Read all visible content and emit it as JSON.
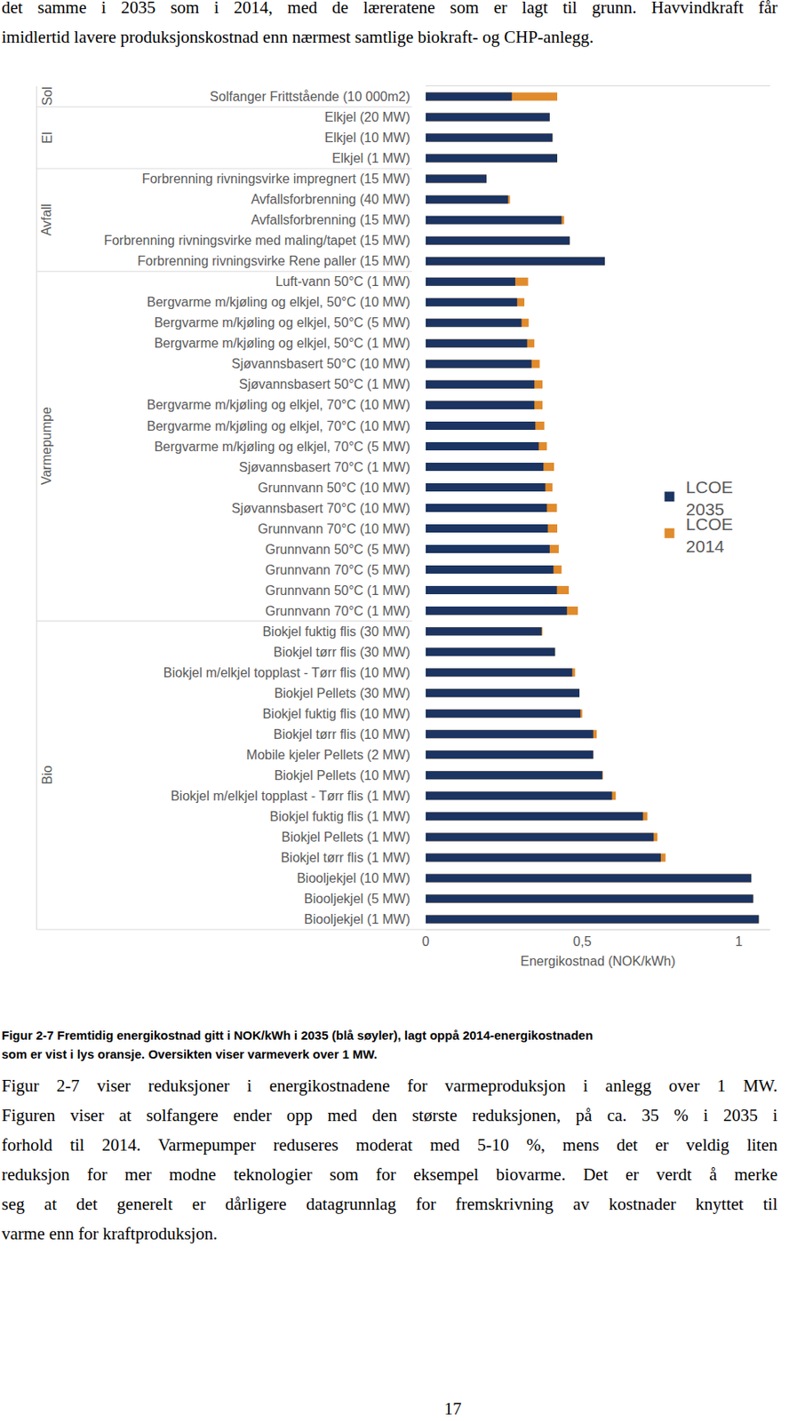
{
  "page": {
    "text_top": [
      "det samme i 2035 som i 2014, med de læreratene som er lagt til grunn. Havvindkraft får",
      "imidlertid lavere produksjonskostnad enn nærmest samtlige biokraft- og CHP-anlegg."
    ],
    "caption": [
      "Figur 2-7 Fremtidig energikostnad gitt i NOK/kWh i 2035 (blå søyler), lagt oppå 2014-energikostnaden",
      "som er vist i lys oransje. Oversikten viser varmeverk over 1 MW."
    ],
    "body": [
      "Figur 2-7 viser reduksjoner i energikostnadene for varmeproduksjon i anlegg over 1 MW.",
      "Figuren viser at solfangere ender opp med den største reduksjonen, på ca. 35 % i 2035 i",
      "forhold til 2014.  Varmepumper reduseres moderat med 5-10 %, mens det er veldig liten",
      "reduksjon for mer modne teknologier som for eksempel biovarme.  Det er verdt å merke",
      "seg at det generelt er dårligere datagrunnlag for fremskrivning av kostnader knyttet til",
      "varme enn for kraftproduksjon."
    ],
    "page_number": "17"
  },
  "chart_data": {
    "type": "bar",
    "orientation": "horizontal",
    "stacked": false,
    "x_label": "Energikostnad (NOK/kWh)",
    "xlim": [
      0,
      1.1
    ],
    "xticks": [
      0,
      {
        "value": 0.5,
        "label": "0,5"
      },
      1
    ],
    "grid": false,
    "legend": "right",
    "categories": [
      "Solfanger Frittstående (10 000m2)",
      "Elkjel (20 MW)",
      "Elkjel (10 MW)",
      "Elkjel (1 MW)",
      "Forbrenning rivningsvirke impregnert (15 MW)",
      "Avfallsforbrenning (40 MW)",
      "Avfallsforbrenning (15 MW)",
      "Forbrenning rivningsvirke med maling/tapet (15 MW)",
      "Forbrenning rivningsvirke Rene paller (15 MW)",
      "Luft-vann 50°C (1 MW)",
      "Bergvarme m/kjøling og elkjel, 50°C (10 MW)",
      "Bergvarme m/kjøling og elkjel, 50°C (5 MW)",
      "Bergvarme m/kjøling og elkjel, 50°C (1 MW)",
      "Sjøvannsbasert 50°C (10 MW)",
      "Sjøvannsbasert 50°C (1 MW)",
      "Bergvarme m/kjøling og elkjel, 70°C (10 MW)",
      "Bergvarme m/kjøling og elkjel, 70°C (10 MW)",
      "Bergvarme m/kjøling og elkjel, 70°C (5 MW)",
      "Sjøvannsbasert 70°C (1 MW)",
      "Grunnvann 50°C (10 MW)",
      "Sjøvannsbasert 70°C (10 MW)",
      "Grunnvann 70°C (10 MW)",
      "Grunnvann 50°C (5 MW)",
      "Grunnvann 70°C (5 MW)",
      "Grunnvann 50°C (1 MW)",
      "Grunnvann 70°C (1 MW)",
      "Biokjel fuktig flis (30 MW)",
      "Biokjel tørr flis (30 MW)",
      "Biokjel m/elkjel topplast - Tørr flis (10 MW)",
      "Biokjel Pellets (30 MW)",
      "Biokjel fuktig flis (10 MW)",
      "Biokjel tørr flis (10 MW)",
      "Mobile kjeler Pellets (2 MW)",
      "Biokjel Pellets (10 MW)",
      "Biokjel m/elkjel topplast - Tørr flis (1 MW)",
      "Biokjel fuktig flis (1 MW)",
      "Biokjel Pellets (1 MW)",
      "Biokjel tørr flis (1 MW)",
      "Biooljekjel (10 MW)",
      "Biooljekjel (5 MW)",
      "Biooljekjel (1 MW)"
    ],
    "groups": [
      "Sol",
      "El",
      "El",
      "El",
      "Avfall",
      "Avfall",
      "Avfall",
      "Avfall",
      "Avfall",
      "Varmepumpe",
      "Varmepumpe",
      "Varmepumpe",
      "Varmepumpe",
      "Varmepumpe",
      "Varmepumpe",
      "Varmepumpe",
      "Varmepumpe",
      "Varmepumpe",
      "Varmepumpe",
      "Varmepumpe",
      "Varmepumpe",
      "Varmepumpe",
      "Varmepumpe",
      "Varmepumpe",
      "Varmepumpe",
      "Varmepumpe",
      "Bio",
      "Bio",
      "Bio",
      "Bio",
      "Bio",
      "Bio",
      "Bio",
      "Bio",
      "Bio",
      "Bio",
      "Bio",
      "Bio",
      "Bio",
      "Bio",
      "Bio"
    ],
    "series": [
      {
        "name": "LCOE 2035",
        "color": "#1b3461",
        "values": [
          0.275,
          0.396,
          0.405,
          0.42,
          0.194,
          0.263,
          0.434,
          0.46,
          0.572,
          0.286,
          0.292,
          0.306,
          0.324,
          0.338,
          0.347,
          0.347,
          0.35,
          0.361,
          0.376,
          0.382,
          0.387,
          0.39,
          0.396,
          0.408,
          0.419,
          0.451,
          0.37,
          0.413,
          0.468,
          0.491,
          0.494,
          0.535,
          0.535,
          0.564,
          0.595,
          0.694,
          0.728,
          0.751,
          1.04,
          1.046,
          1.064
        ]
      },
      {
        "name": "LCOE 2014",
        "color": "#e08b2c",
        "values": [
          0.42,
          0.396,
          0.405,
          0.42,
          0.194,
          0.269,
          0.442,
          0.46,
          0.572,
          0.327,
          0.315,
          0.329,
          0.347,
          0.364,
          0.373,
          0.373,
          0.379,
          0.387,
          0.41,
          0.405,
          0.419,
          0.42,
          0.425,
          0.434,
          0.457,
          0.486,
          0.373,
          0.413,
          0.477,
          0.491,
          0.5,
          0.546,
          0.535,
          0.566,
          0.607,
          0.708,
          0.74,
          0.766,
          1.04,
          1.046,
          1.064
        ]
      }
    ]
  }
}
